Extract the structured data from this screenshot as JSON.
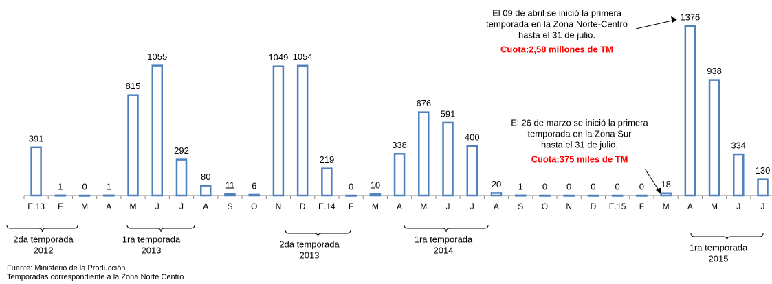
{
  "chart_data": {
    "type": "bar",
    "categories": [
      "E.13",
      "F",
      "M",
      "A",
      "M",
      "J",
      "J",
      "A",
      "S",
      "O",
      "N",
      "D",
      "E.14",
      "F",
      "M",
      "A",
      "M",
      "J",
      "J",
      "A",
      "S",
      "O",
      "N",
      "D",
      "E.15",
      "F",
      "M",
      "A",
      "M",
      "J",
      "J"
    ],
    "values": [
      391,
      1,
      0,
      1,
      815,
      1055,
      292,
      80,
      11,
      6,
      1049,
      1054,
      219,
      0,
      10,
      338,
      676,
      591,
      400,
      20,
      1,
      0,
      0,
      0,
      0,
      0,
      18,
      1376,
      938,
      334,
      130
    ],
    "color": "#4f81bd",
    "annotations": [
      {
        "lines": [
          "El 09 de abril se inició la primera",
          "temporada en la Zona  Norte-Centro",
          "hasta el 31 de julio."
        ],
        "highlight": "Cuota:2,58 millones de TM"
      },
      {
        "lines": [
          "El 26 de marzo se inició la primera",
          "temporada en la Zona Sur",
          "hasta el 31 de julio."
        ],
        "highlight": "Cuota:375 miles de TM"
      }
    ],
    "groups": [
      {
        "lines": [
          "2da  temporada",
          "2012"
        ]
      },
      {
        "lines": [
          "1ra  temporada",
          "2013"
        ]
      },
      {
        "lines": [
          "2da  temporada",
          "2013"
        ]
      },
      {
        "lines": [
          "1ra temporada",
          "2014"
        ]
      },
      {
        "lines": [
          "1ra temporada",
          "2015"
        ]
      }
    ],
    "source": [
      "Fuente: Ministerio de la Producción",
      "Temporadas correspondiente a la Zona Norte Centro"
    ]
  }
}
